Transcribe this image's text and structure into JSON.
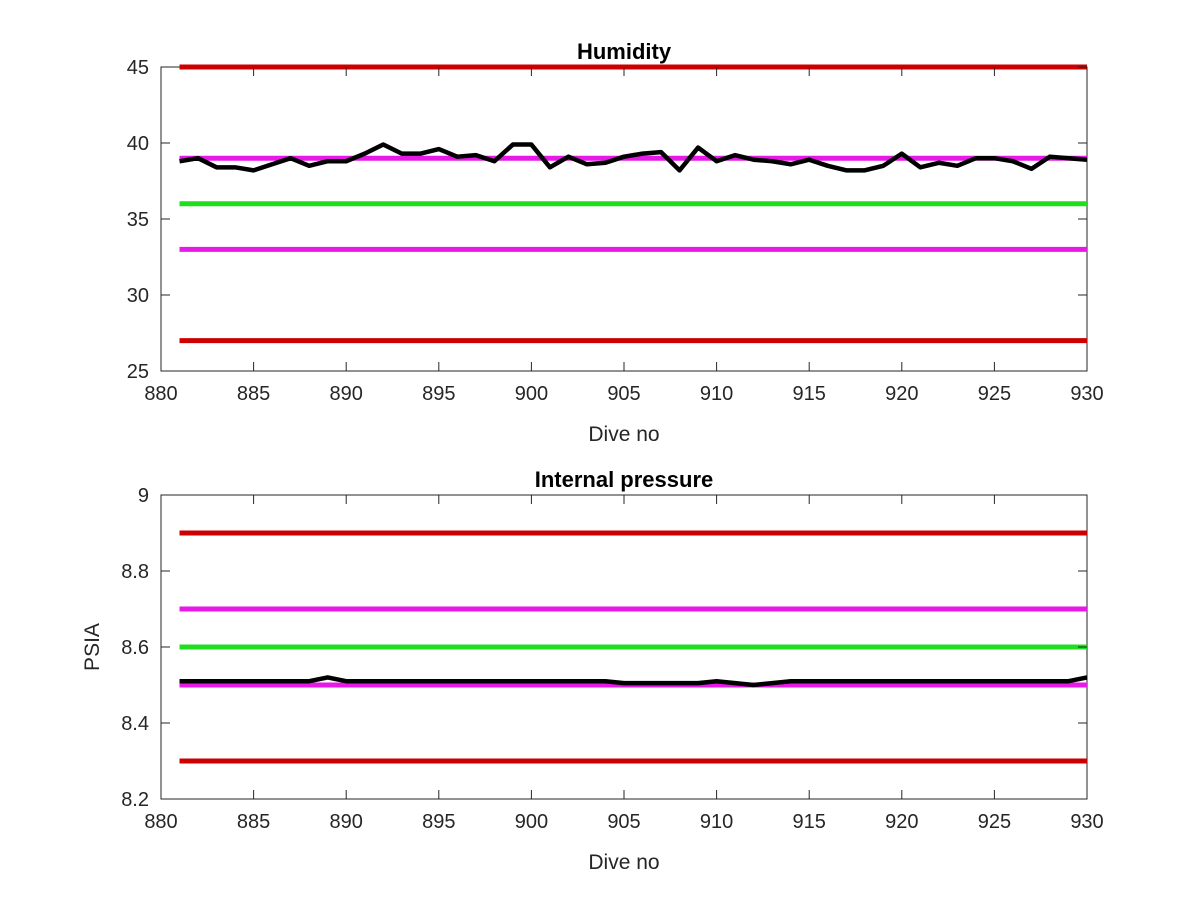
{
  "chart_data": [
    {
      "type": "line",
      "title": "Humidity",
      "xlabel": "Dive no",
      "ylabel": "",
      "xlim": [
        880,
        930
      ],
      "ylim": [
        25,
        45
      ],
      "xticks": [
        880,
        885,
        890,
        895,
        900,
        905,
        910,
        915,
        920,
        925,
        930
      ],
      "yticks": [
        25,
        30,
        35,
        40,
        45
      ],
      "grid": false,
      "legend": "none",
      "reference_lines": [
        {
          "y": 45,
          "color": "#cc0000"
        },
        {
          "y": 27,
          "color": "#cc0000"
        },
        {
          "y": 39,
          "color": "#e619e6"
        },
        {
          "y": 33,
          "color": "#e619e6"
        },
        {
          "y": 36,
          "color": "#1fdd1f"
        }
      ],
      "series": [
        {
          "color": "#000000",
          "x": [
            881,
            882,
            883,
            884,
            885,
            886,
            887,
            888,
            889,
            890,
            891,
            892,
            893,
            894,
            895,
            896,
            897,
            898,
            899,
            900,
            901,
            902,
            903,
            904,
            905,
            906,
            907,
            908,
            909,
            910,
            911,
            912,
            913,
            914,
            915,
            916,
            917,
            918,
            919,
            920,
            921,
            922,
            923,
            924,
            925,
            926,
            927,
            928,
            929,
            930
          ],
          "y": [
            38.8,
            39.0,
            38.4,
            38.4,
            38.2,
            38.6,
            39.0,
            38.5,
            38.8,
            38.8,
            39.3,
            39.9,
            39.3,
            39.3,
            39.6,
            39.1,
            39.2,
            38.8,
            39.9,
            39.9,
            38.4,
            39.1,
            38.6,
            38.7,
            39.1,
            39.3,
            39.4,
            38.2,
            39.7,
            38.8,
            39.2,
            38.9,
            38.8,
            38.6,
            38.9,
            38.5,
            38.2,
            38.2,
            38.5,
            39.3,
            38.4,
            38.7,
            38.5,
            39.0,
            39.0,
            38.8,
            38.3,
            39.1,
            39.0,
            38.9
          ]
        }
      ]
    },
    {
      "type": "line",
      "title": "Internal pressure",
      "xlabel": "Dive no",
      "ylabel": "PSIA",
      "xlim": [
        880,
        930
      ],
      "ylim": [
        8.2,
        9
      ],
      "xticks": [
        880,
        885,
        890,
        895,
        900,
        905,
        910,
        915,
        920,
        925,
        930
      ],
      "yticks": [
        "8.2",
        "8.4",
        "8.6",
        "8.8",
        "9"
      ],
      "grid": false,
      "legend": "none",
      "reference_lines": [
        {
          "y": 8.9,
          "color": "#cc0000"
        },
        {
          "y": 8.3,
          "color": "#cc0000"
        },
        {
          "y": 8.7,
          "color": "#e619e6"
        },
        {
          "y": 8.5,
          "color": "#e619e6"
        },
        {
          "y": 8.6,
          "color": "#1fdd1f"
        }
      ],
      "series": [
        {
          "color": "#000000",
          "x": [
            881,
            882,
            883,
            884,
            885,
            886,
            887,
            888,
            889,
            890,
            891,
            892,
            893,
            894,
            895,
            896,
            897,
            898,
            899,
            900,
            901,
            902,
            903,
            904,
            905,
            906,
            907,
            908,
            909,
            910,
            911,
            912,
            913,
            914,
            915,
            916,
            917,
            918,
            919,
            920,
            921,
            922,
            923,
            924,
            925,
            926,
            927,
            928,
            929,
            930
          ],
          "y": [
            8.51,
            8.51,
            8.51,
            8.51,
            8.51,
            8.51,
            8.51,
            8.51,
            8.52,
            8.51,
            8.51,
            8.51,
            8.51,
            8.51,
            8.51,
            8.51,
            8.51,
            8.51,
            8.51,
            8.51,
            8.51,
            8.51,
            8.51,
            8.51,
            8.505,
            8.505,
            8.505,
            8.505,
            8.505,
            8.51,
            8.505,
            8.5,
            8.505,
            8.51,
            8.51,
            8.51,
            8.51,
            8.51,
            8.51,
            8.51,
            8.51,
            8.51,
            8.51,
            8.51,
            8.51,
            8.51,
            8.51,
            8.51,
            8.51,
            8.52
          ]
        }
      ]
    }
  ]
}
